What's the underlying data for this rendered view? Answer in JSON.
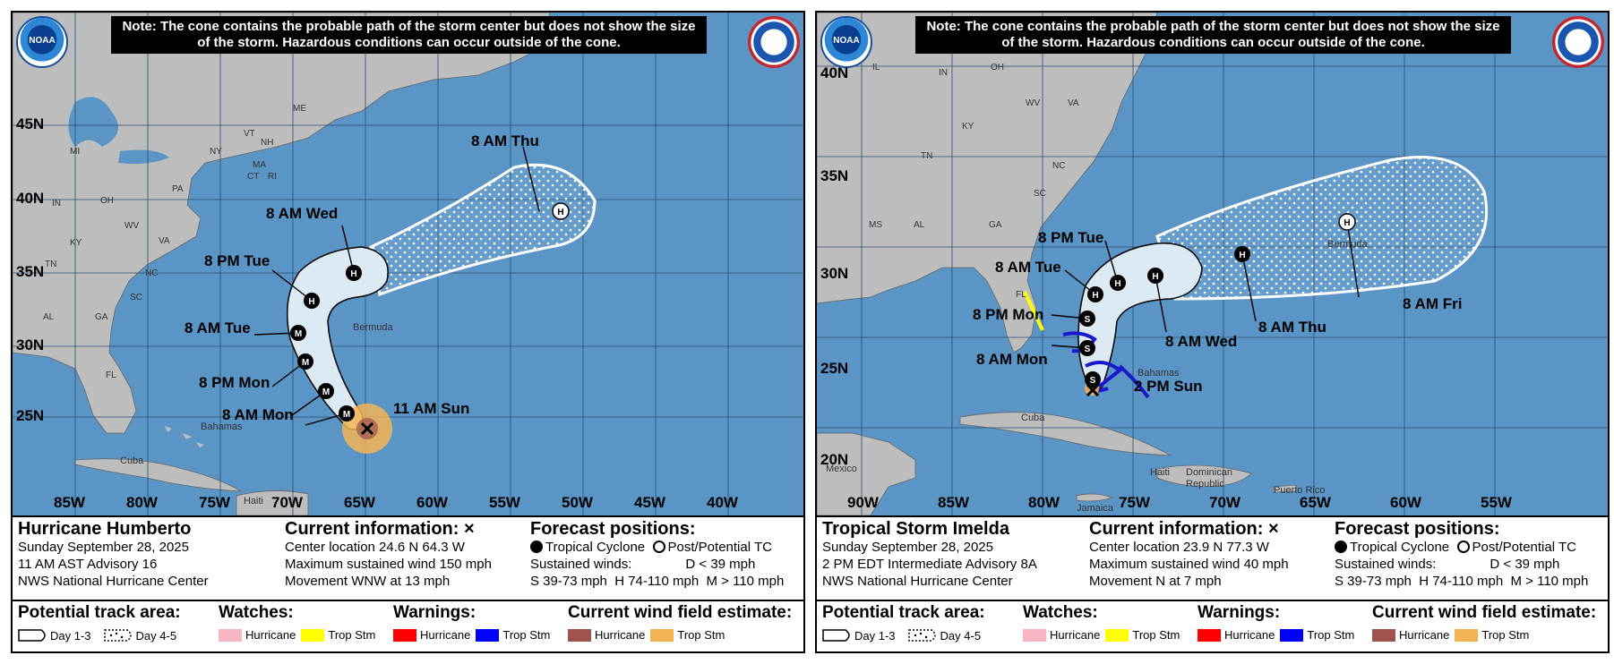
{
  "panels": [
    {
      "note": "Note: The cone contains the probable path of the storm center but does not show the size of the storm. Hazardous conditions can occur outside of the cone.",
      "logos": {
        "left": "NOAA",
        "right_icon": "nws-seal-icon"
      },
      "lat_labels": [
        "45N",
        "40N",
        "35N",
        "30N",
        "25N"
      ],
      "lon_labels": [
        "85W",
        "80W",
        "75W",
        "70W",
        "65W",
        "60W",
        "55W",
        "50W",
        "45W",
        "40W"
      ],
      "states": [
        "ME",
        "VT",
        "NH",
        "NY",
        "MA",
        "CT",
        "RI",
        "MI",
        "PA",
        "OH",
        "IN",
        "WV",
        "VA",
        "KY",
        "NC",
        "TN",
        "SC",
        "GA",
        "AL",
        "FL"
      ],
      "places": [
        "Bermuda",
        "Bahamas",
        "Cuba",
        "Haiti"
      ],
      "forecast_labels": [
        "8 AM Thu",
        "8 AM Wed",
        "8 PM Tue",
        "8 AM Tue",
        "8 PM Mon",
        "8 AM Mon",
        "11 AM Sun"
      ],
      "forecast_points": [
        {
          "time": "8 AM Mon",
          "lat": 26.1,
          "lon": -65.3,
          "type": "M"
        },
        {
          "time": "8 PM Mon",
          "lat": 27.6,
          "lon": -66.2,
          "type": "M"
        },
        {
          "time": "8 AM Tue",
          "lat": 29.8,
          "lon": -67.4,
          "type": "M"
        },
        {
          "time": "8 PM Tue",
          "lat": 32.6,
          "lon": -67.6,
          "type": "M"
        },
        {
          "time": "8 AM Wed",
          "lat": 34.5,
          "lon": -64.2,
          "type": "H"
        },
        {
          "time": "8 AM Thu",
          "lat": 38.8,
          "lon": -50.3,
          "type": "H"
        }
      ],
      "current_position": {
        "lat": 24.6,
        "lon": -64.3
      },
      "storm_name": "Hurricane Humberto",
      "date": "Sunday September 28, 2025",
      "advisory": "11 AM AST Advisory 16",
      "center": "NWS National Hurricane Center",
      "current_info": {
        "title": "Current information: ×",
        "location": "Center location 24.6 N 64.3 W",
        "wind": "Maximum sustained wind 150 mph",
        "movement": "Movement WNW at 13 mph"
      },
      "forecast_legend": {
        "title": "Forecast positions:",
        "tc": "Tropical Cyclone",
        "post": "Post/Potential TC",
        "winds": "Sustained winds:",
        "d": "D < 39 mph",
        "scale": "S 39-73 mph  H 74-110 mph  M > 110 mph"
      },
      "legend": {
        "track_title": "Potential track area:",
        "day13": "Day 1-3",
        "day45": "Day 4-5",
        "watches_title": "Watches:",
        "warnings_title": "Warnings:",
        "wind_title": "Current wind field estimate:",
        "hurricane": "Hurricane",
        "trop_stm": "Trop Stm"
      }
    },
    {
      "note": "Note: The cone contains the probable path of the storm center but does not show the size of the storm. Hazardous conditions can occur outside of the cone.",
      "logos": {
        "left": "NOAA",
        "right_icon": "nws-seal-icon"
      },
      "lat_labels": [
        "40N",
        "35N",
        "30N",
        "25N",
        "20N"
      ],
      "lon_labels": [
        "90W",
        "85W",
        "80W",
        "75W",
        "70W",
        "65W",
        "60W",
        "55W"
      ],
      "states": [
        "IL",
        "IN",
        "OH",
        "KY",
        "WV",
        "VA",
        "TN",
        "NC",
        "SC",
        "GA",
        "AL",
        "MS",
        "FL"
      ],
      "places": [
        "Bermuda",
        "Bahamas",
        "Cuba",
        "Mexico",
        "Jamaica",
        "Haiti",
        "Dominican Republic",
        "Puerto Rico"
      ],
      "forecast_labels": [
        "8 PM Tue",
        "8 AM Tue",
        "8 PM Mon",
        "8 AM Mon",
        "2 PM Sun",
        "8 AM Wed",
        "8 AM Thu",
        "8 AM Fri"
      ],
      "forecast_points": [
        {
          "time": "8 AM Mon",
          "lat": 26.1,
          "lon": -77.5,
          "type": "S"
        },
        {
          "time": "8 PM Mon",
          "lat": 27.7,
          "lon": -77.4,
          "type": "S"
        },
        {
          "time": "8 AM Tue",
          "lat": 29.1,
          "lon": -77.0,
          "type": "H"
        },
        {
          "time": "8 PM Tue",
          "lat": 29.6,
          "lon": -75.7,
          "type": "H"
        },
        {
          "time": "8 AM Wed",
          "lat": 30.2,
          "lon": -73.6,
          "type": "H"
        },
        {
          "time": "8 AM Thu",
          "lat": 31.6,
          "lon": -68.1,
          "type": "H"
        },
        {
          "time": "8 AM Fri",
          "lat": 33.2,
          "lon": -61.7,
          "type": "D"
        }
      ],
      "current_position": {
        "lat": 23.9,
        "lon": -77.3
      },
      "storm_name": "Tropical Storm Imelda",
      "date": "Sunday September 28, 2025",
      "advisory": "2 PM EDT Intermediate Advisory 8A",
      "center": "NWS National Hurricane Center",
      "current_info": {
        "title": "Current information: ×",
        "location": "Center location 23.9 N 77.3 W",
        "wind": "Maximum sustained wind 40 mph",
        "movement": "Movement N at 7 mph"
      },
      "forecast_legend": {
        "title": "Forecast positions:",
        "tc": "Tropical Cyclone",
        "post": "Post/Potential TC",
        "winds": "Sustained winds:",
        "d": "D < 39 mph",
        "scale": "S 39-73 mph  H 74-110 mph  M > 110 mph"
      },
      "legend": {
        "track_title": "Potential track area:",
        "day13": "Day 1-3",
        "day45": "Day 4-5",
        "watches_title": "Watches:",
        "warnings_title": "Warnings:",
        "wind_title": "Current wind field estimate:",
        "hurricane": "Hurricane",
        "trop_stm": "Trop Stm"
      }
    }
  ],
  "colors": {
    "ocean": "#5a95c6",
    "land": "#bdbdbd",
    "cone_fill": "#dde9f3",
    "hurr_watch": "#f7b5c3",
    "ts_watch": "#ffff00",
    "hurr_warning": "#ff0000",
    "ts_warning": "#0000ff",
    "wind_hurr": "#a0524e",
    "wind_ts": "#f2b453"
  }
}
